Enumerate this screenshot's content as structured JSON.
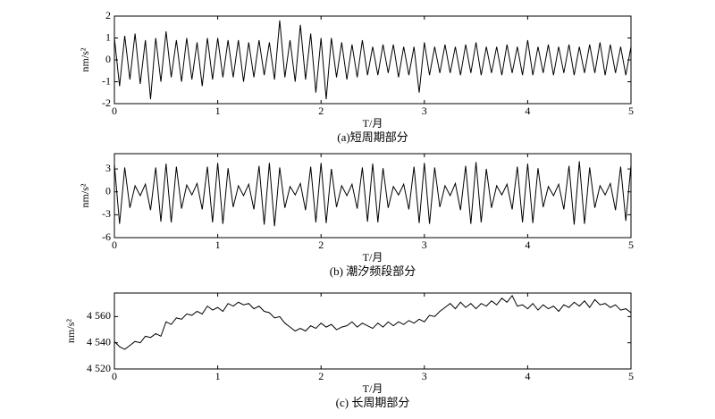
{
  "chart_data": [
    {
      "type": "line",
      "ylabel": "nm/s²",
      "xlabel": "T/月",
      "caption": "(a)短周期部分",
      "color": "#000000",
      "xlim": [
        0,
        5
      ],
      "xticks": [
        0,
        1,
        2,
        3,
        4,
        5
      ],
      "ylim": [
        -2,
        2
      ],
      "yticks": [
        -2,
        -1,
        0,
        1,
        2
      ],
      "x": [
        0,
        0.05,
        0.1,
        0.15,
        0.2,
        0.25,
        0.3,
        0.35,
        0.4,
        0.45,
        0.5,
        0.55,
        0.6,
        0.65,
        0.7,
        0.75,
        0.8,
        0.85,
        0.9,
        0.95,
        1,
        1.05,
        1.1,
        1.15,
        1.2,
        1.25,
        1.3,
        1.35,
        1.4,
        1.45,
        1.5,
        1.55,
        1.6,
        1.65,
        1.7,
        1.75,
        1.8,
        1.85,
        1.9,
        1.95,
        2,
        2.05,
        2.1,
        2.15,
        2.2,
        2.25,
        2.3,
        2.35,
        2.4,
        2.45,
        2.5,
        2.55,
        2.6,
        2.65,
        2.7,
        2.75,
        2.8,
        2.85,
        2.9,
        2.95,
        3,
        3.05,
        3.1,
        3.15,
        3.2,
        3.25,
        3.3,
        3.35,
        3.4,
        3.45,
        3.5,
        3.55,
        3.6,
        3.65,
        3.7,
        3.75,
        3.8,
        3.85,
        3.9,
        3.95,
        4,
        4.05,
        4.1,
        4.15,
        4.2,
        4.25,
        4.3,
        4.35,
        4.4,
        4.45,
        4.5,
        4.55,
        4.6,
        4.65,
        4.7,
        4.75,
        4.8,
        4.85,
        4.9,
        4.95,
        5
      ],
      "values": [
        1.0,
        -1.2,
        1.1,
        -0.9,
        1.2,
        -1.1,
        0.9,
        -1.8,
        1.0,
        -1.0,
        1.3,
        -0.8,
        0.9,
        -1.0,
        1.0,
        -0.9,
        0.8,
        -1.2,
        1.0,
        -0.9,
        1.0,
        -0.8,
        0.9,
        -0.8,
        0.9,
        -1.0,
        0.8,
        -0.8,
        0.9,
        -0.7,
        0.8,
        -0.9,
        1.8,
        -0.8,
        0.9,
        -1.0,
        1.6,
        -0.9,
        1.2,
        -1.5,
        1.0,
        -1.8,
        1.0,
        -0.8,
        0.8,
        -0.9,
        0.7,
        -0.8,
        0.9,
        -0.7,
        0.6,
        -0.7,
        0.7,
        -0.6,
        0.7,
        -0.8,
        0.6,
        -0.7,
        0.6,
        -1.5,
        0.8,
        -0.7,
        0.6,
        -0.6,
        0.7,
        -0.6,
        0.6,
        -0.7,
        0.7,
        -0.6,
        0.8,
        -0.7,
        0.6,
        -0.6,
        0.6,
        -0.7,
        0.7,
        -0.6,
        0.6,
        -0.7,
        0.9,
        -0.7,
        0.6,
        -0.6,
        0.7,
        -0.7,
        0.6,
        -0.6,
        0.7,
        -0.7,
        0.6,
        -0.6,
        0.7,
        -0.6,
        0.8,
        -0.7,
        0.7,
        -0.6,
        0.6,
        -0.7,
        0.6
      ]
    },
    {
      "type": "line",
      "ylabel": "nm/s²",
      "xlabel": "T/月",
      "caption": "(b) 潮汐频段部分",
      "color": "#000000",
      "xlim": [
        0,
        5
      ],
      "xticks": [
        0,
        1,
        2,
        3,
        4,
        5
      ],
      "ylim": [
        -6,
        5
      ],
      "yticks": [
        -6,
        -3,
        0,
        3
      ],
      "x": [
        0,
        0.05,
        0.1,
        0.15,
        0.2,
        0.25,
        0.3,
        0.35,
        0.4,
        0.45,
        0.5,
        0.55,
        0.6,
        0.65,
        0.7,
        0.75,
        0.8,
        0.85,
        0.9,
        0.95,
        1,
        1.05,
        1.1,
        1.15,
        1.2,
        1.25,
        1.3,
        1.35,
        1.4,
        1.45,
        1.5,
        1.55,
        1.6,
        1.65,
        1.7,
        1.75,
        1.8,
        1.85,
        1.9,
        1.95,
        2,
        2.05,
        2.1,
        2.15,
        2.2,
        2.25,
        2.3,
        2.35,
        2.4,
        2.45,
        2.5,
        2.55,
        2.6,
        2.65,
        2.7,
        2.75,
        2.8,
        2.85,
        2.9,
        2.95,
        3,
        3.05,
        3.1,
        3.15,
        3.2,
        3.25,
        3.3,
        3.35,
        3.4,
        3.45,
        3.5,
        3.55,
        3.6,
        3.65,
        3.7,
        3.75,
        3.8,
        3.85,
        3.9,
        3.95,
        4,
        4.05,
        4.1,
        4.15,
        4.2,
        4.25,
        4.3,
        4.35,
        4.4,
        4.45,
        4.5,
        4.55,
        4.6,
        4.65,
        4.7,
        4.75,
        4.8,
        4.85,
        4.9,
        4.95,
        5
      ],
      "values": [
        3.6,
        -4.2,
        3.2,
        -2.1,
        0.8,
        -0.5,
        1.0,
        -2.4,
        3.2,
        -3.9,
        3.7,
        -4.0,
        3.3,
        -2.2,
        0.9,
        -0.4,
        1.1,
        -2.3,
        3.3,
        -4.0,
        3.8,
        -4.2,
        3.1,
        -2.0,
        0.8,
        -0.5,
        1.0,
        -2.3,
        3.4,
        -4.3,
        3.8,
        -4.5,
        3.2,
        -2.1,
        0.7,
        -0.4,
        1.1,
        -2.4,
        3.3,
        -4.0,
        3.8,
        -4.1,
        3.0,
        -2.0,
        0.8,
        -0.5,
        1.0,
        -2.2,
        3.2,
        -3.9,
        3.7,
        -4.0,
        3.1,
        -2.1,
        0.7,
        -0.4,
        1.0,
        -2.3,
        3.3,
        -4.1,
        3.8,
        -4.2,
        3.2,
        -2.0,
        0.8,
        -0.5,
        1.1,
        -2.4,
        3.4,
        -4.2,
        3.9,
        -4.0,
        3.0,
        -2.1,
        0.8,
        -0.4,
        1.0,
        -2.3,
        3.3,
        -4.0,
        3.7,
        -4.1,
        3.1,
        -2.0,
        0.7,
        -0.5,
        1.0,
        -2.3,
        3.4,
        -4.3,
        4.0,
        -4.2,
        3.2,
        -2.1,
        0.8,
        -0.4,
        1.1,
        -2.4,
        3.3,
        -3.8,
        3.5
      ]
    },
    {
      "type": "line",
      "ylabel": "nm/s²",
      "xlabel": "T/月",
      "caption": "(c) 长周期部分",
      "color": "#000000",
      "xlim": [
        0,
        5
      ],
      "xticks": [
        0,
        1,
        2,
        3,
        4,
        5
      ],
      "ylim": [
        4520,
        4578
      ],
      "yticks": [
        {
          "value": 4520,
          "label": "4 520"
        },
        {
          "value": 4540,
          "label": "4 540"
        },
        {
          "value": 4560,
          "label": "4 560"
        }
      ],
      "x": [
        0,
        0.05,
        0.1,
        0.15,
        0.2,
        0.25,
        0.3,
        0.35,
        0.4,
        0.45,
        0.5,
        0.55,
        0.6,
        0.65,
        0.7,
        0.75,
        0.8,
        0.85,
        0.9,
        0.95,
        1,
        1.05,
        1.1,
        1.15,
        1.2,
        1.25,
        1.3,
        1.35,
        1.4,
        1.45,
        1.5,
        1.55,
        1.6,
        1.65,
        1.7,
        1.75,
        1.8,
        1.85,
        1.9,
        1.95,
        2,
        2.05,
        2.1,
        2.15,
        2.2,
        2.25,
        2.3,
        2.35,
        2.4,
        2.45,
        2.5,
        2.55,
        2.6,
        2.65,
        2.7,
        2.75,
        2.8,
        2.85,
        2.9,
        2.95,
        3,
        3.05,
        3.1,
        3.15,
        3.2,
        3.25,
        3.3,
        3.35,
        3.4,
        3.45,
        3.5,
        3.55,
        3.6,
        3.65,
        3.7,
        3.75,
        3.8,
        3.85,
        3.9,
        3.95,
        4,
        4.05,
        4.1,
        4.15,
        4.2,
        4.25,
        4.3,
        4.35,
        4.4,
        4.45,
        4.5,
        4.55,
        4.6,
        4.65,
        4.7,
        4.75,
        4.8,
        4.85,
        4.9,
        4.95,
        5
      ],
      "values": [
        4541,
        4537,
        4535,
        4538,
        4541,
        4540,
        4545,
        4544,
        4547,
        4545,
        4556,
        4554,
        4559,
        4558,
        4562,
        4561,
        4564,
        4562,
        4568,
        4565,
        4567,
        4564,
        4570,
        4568,
        4571,
        4569,
        4570,
        4566,
        4568,
        4564,
        4563,
        4559,
        4560,
        4555,
        4552,
        4549,
        4551,
        4549,
        4553,
        4551,
        4555,
        4552,
        4554,
        4550,
        4552,
        4553,
        4556,
        4552,
        4555,
        4553,
        4551,
        4555,
        4552,
        4556,
        4553,
        4556,
        4554,
        4557,
        4555,
        4558,
        4556,
        4561,
        4560,
        4564,
        4567,
        4570,
        4566,
        4571,
        4567,
        4570,
        4566,
        4570,
        4568,
        4572,
        4569,
        4574,
        4571,
        4576,
        4568,
        4569,
        4566,
        4570,
        4565,
        4569,
        4566,
        4568,
        4564,
        4569,
        4567,
        4571,
        4568,
        4572,
        4567,
        4573,
        4569,
        4570,
        4567,
        4569,
        4565,
        4566,
        4563
      ]
    }
  ]
}
